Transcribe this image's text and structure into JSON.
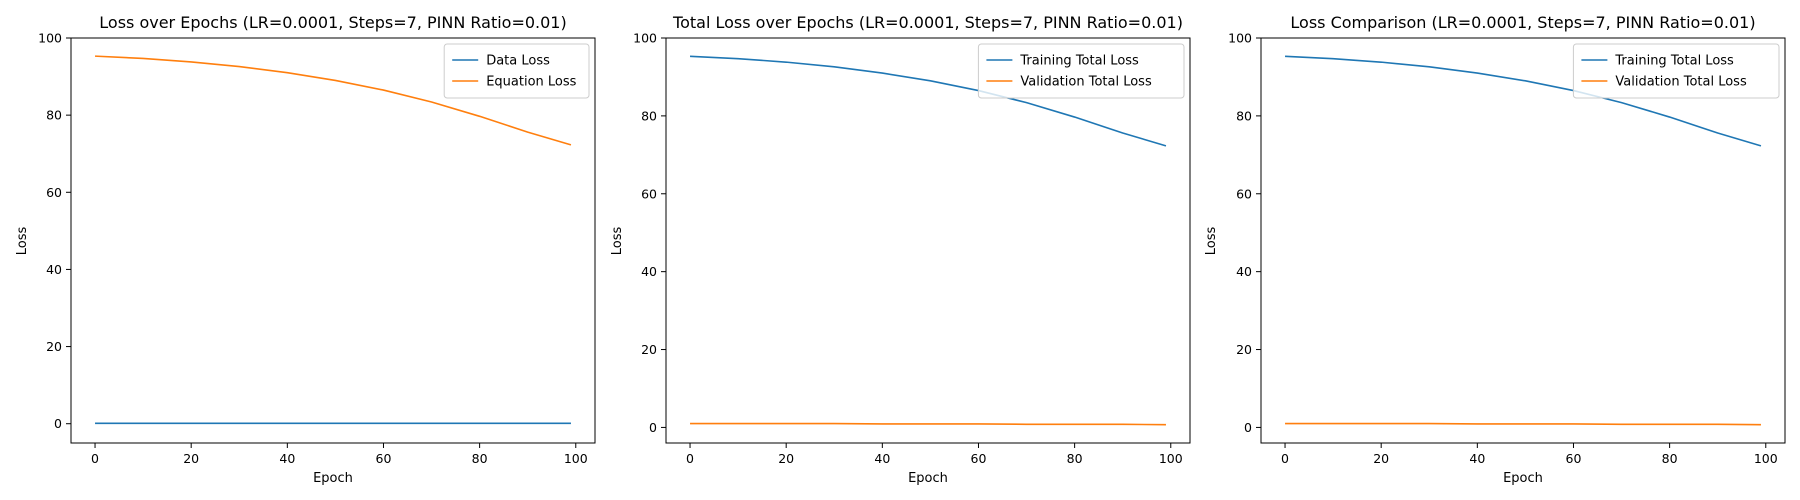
{
  "colors": {
    "blue": "#1f77b4",
    "orange": "#ff7f0e"
  },
  "chart_data": [
    {
      "type": "line",
      "title": "Loss over Epochs (LR=0.0001, Steps=7, PINN Ratio=0.01)",
      "xlabel": "Epoch",
      "ylabel": "Loss",
      "xlim": [
        -5,
        104
      ],
      "ylim": [
        -5,
        100
      ],
      "xticks": [
        0,
        20,
        40,
        60,
        80,
        100
      ],
      "yticks": [
        0,
        20,
        40,
        60,
        80,
        100
      ],
      "grid": false,
      "legend_position": "top-right",
      "x": [
        0,
        10,
        20,
        30,
        40,
        50,
        60,
        70,
        80,
        90,
        99
      ],
      "series": [
        {
          "name": "Data Loss",
          "color": "#1f77b4",
          "values": [
            0.1,
            0.1,
            0.1,
            0.1,
            0.1,
            0.1,
            0.1,
            0.1,
            0.1,
            0.1,
            0.1
          ]
        },
        {
          "name": "Equation Loss",
          "color": "#ff7f0e",
          "values": [
            95.3,
            94.7,
            93.8,
            92.6,
            91.0,
            89.0,
            86.5,
            83.4,
            79.7,
            75.6,
            72.3
          ]
        }
      ]
    },
    {
      "type": "line",
      "title": "Total Loss over Epochs (LR=0.0001, Steps=7, PINN Ratio=0.01)",
      "xlabel": "Epoch",
      "ylabel": "Loss",
      "xlim": [
        -5,
        104
      ],
      "ylim": [
        -4,
        100
      ],
      "xticks": [
        0,
        20,
        40,
        60,
        80,
        100
      ],
      "yticks": [
        0,
        20,
        40,
        60,
        80,
        100
      ],
      "grid": false,
      "legend_position": "top-right",
      "x": [
        0,
        10,
        20,
        30,
        40,
        50,
        60,
        70,
        80,
        90,
        99
      ],
      "series": [
        {
          "name": "Training Total Loss",
          "color": "#1f77b4",
          "values": [
            95.3,
            94.7,
            93.8,
            92.6,
            91.0,
            89.0,
            86.5,
            83.4,
            79.7,
            75.6,
            72.3
          ]
        },
        {
          "name": "Validation Total Loss",
          "color": "#ff7f0e",
          "values": [
            1.0,
            1.0,
            1.0,
            1.0,
            0.9,
            0.9,
            0.9,
            0.8,
            0.8,
            0.8,
            0.7
          ]
        }
      ]
    },
    {
      "type": "line",
      "title": "Loss Comparison (LR=0.0001, Steps=7, PINN Ratio=0.01)",
      "xlabel": "Epoch",
      "ylabel": "Loss",
      "xlim": [
        -5,
        104
      ],
      "ylim": [
        -4,
        100
      ],
      "xticks": [
        0,
        20,
        40,
        60,
        80,
        100
      ],
      "yticks": [
        0,
        20,
        40,
        60,
        80,
        100
      ],
      "grid": false,
      "legend_position": "top-right",
      "x": [
        0,
        10,
        20,
        30,
        40,
        50,
        60,
        70,
        80,
        90,
        99
      ],
      "series": [
        {
          "name": "Training Total Loss",
          "color": "#1f77b4",
          "values": [
            95.3,
            94.7,
            93.8,
            92.6,
            91.0,
            89.0,
            86.5,
            83.4,
            79.7,
            75.6,
            72.3
          ]
        },
        {
          "name": "Validation Total Loss",
          "color": "#ff7f0e",
          "values": [
            1.0,
            1.0,
            1.0,
            1.0,
            0.9,
            0.9,
            0.9,
            0.8,
            0.8,
            0.8,
            0.7
          ]
        }
      ]
    }
  ]
}
